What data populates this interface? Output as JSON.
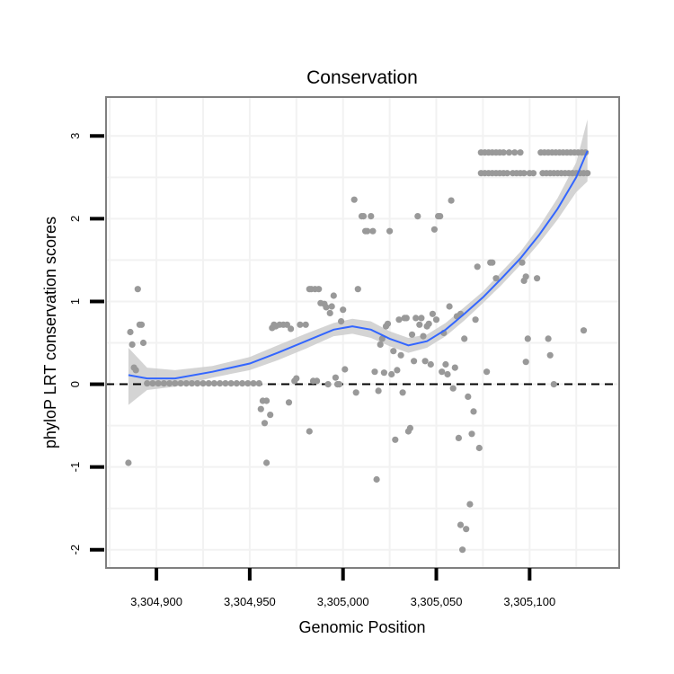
{
  "chart_data": {
    "type": "scatter",
    "title": "Conservation",
    "xlabel": "Genomic Position",
    "ylabel": "phyloP LRT conservation scores",
    "xlim": [
      3304873,
      3305148
    ],
    "ylim": [
      -2.22,
      3.47
    ],
    "x_ticks": [
      3304900,
      3304950,
      3305000,
      3305050,
      3305100
    ],
    "x_tick_labels": [
      "3,304,900",
      "3,304,950",
      "3,305,000",
      "3,305,050",
      "3,305,100"
    ],
    "y_ticks": [
      -2,
      -1,
      0,
      1,
      2,
      3
    ],
    "y_tick_labels": [
      "-2",
      "-1",
      "0",
      "1",
      "2",
      "3"
    ],
    "reference_line": {
      "y": 0,
      "style": "dashed"
    },
    "colors": {
      "points": "#999999",
      "smooth": "#3366ff",
      "ribbon": "#cccccc",
      "panel_border": "#7f7f7f",
      "grid": "#f2f2f2"
    },
    "points": [
      [
        3304885,
        -0.95
      ],
      [
        3304886,
        0.63
      ],
      [
        3304887,
        0.48
      ],
      [
        3304888,
        0.2
      ],
      [
        3304889,
        0.17
      ],
      [
        3304890,
        1.15
      ],
      [
        3304891,
        0.72
      ],
      [
        3304892,
        0.72
      ],
      [
        3304893,
        0.5
      ],
      [
        3304895,
        0.01
      ],
      [
        3304898,
        0.01
      ],
      [
        3304901,
        0.01
      ],
      [
        3304904,
        0.01
      ],
      [
        3304907,
        0.01
      ],
      [
        3304910,
        0.01
      ],
      [
        3304913,
        0.01
      ],
      [
        3304916,
        0.01
      ],
      [
        3304919,
        0.01
      ],
      [
        3304922,
        0.01
      ],
      [
        3304925,
        0.01
      ],
      [
        3304928,
        0.01
      ],
      [
        3304931,
        0.01
      ],
      [
        3304934,
        0.01
      ],
      [
        3304937,
        0.01
      ],
      [
        3304940,
        0.01
      ],
      [
        3304943,
        0.01
      ],
      [
        3304946,
        0.01
      ],
      [
        3304949,
        0.01
      ],
      [
        3304952,
        0.01
      ],
      [
        3304955,
        0.01
      ],
      [
        3304956,
        -0.3
      ],
      [
        3304957,
        -0.2
      ],
      [
        3304958,
        -0.47
      ],
      [
        3304959,
        -0.2
      ],
      [
        3304959,
        -0.95
      ],
      [
        3304961,
        -0.37
      ],
      [
        3304962,
        0.68
      ],
      [
        3304963,
        0.72
      ],
      [
        3304964,
        0.7
      ],
      [
        3304966,
        0.72
      ],
      [
        3304968,
        0.72
      ],
      [
        3304970,
        0.72
      ],
      [
        3304971,
        -0.22
      ],
      [
        3304972,
        0.67
      ],
      [
        3304974,
        0.04
      ],
      [
        3304975,
        0.07
      ],
      [
        3304977,
        0.72
      ],
      [
        3304980,
        0.72
      ],
      [
        3304982,
        -0.57
      ],
      [
        3304982,
        1.15
      ],
      [
        3304983,
        1.15
      ],
      [
        3304985,
        1.15
      ],
      [
        3304987,
        1.15
      ],
      [
        3304984,
        0.04
      ],
      [
        3304986,
        0.04
      ],
      [
        3304988,
        0.98
      ],
      [
        3304990,
        0.97
      ],
      [
        3304991,
        0.93
      ],
      [
        3304992,
        0.0
      ],
      [
        3304993,
        0.86
      ],
      [
        3304994,
        0.94
      ],
      [
        3304995,
        1.07
      ],
      [
        3304996,
        0.08
      ],
      [
        3304997,
        0.0
      ],
      [
        3304998,
        0.0
      ],
      [
        3304999,
        0.76
      ],
      [
        3305000,
        0.9
      ],
      [
        3305001,
        0.18
      ],
      [
        3305006,
        2.23
      ],
      [
        3305007,
        -0.1
      ],
      [
        3305008,
        1.15
      ],
      [
        3305010,
        2.03
      ],
      [
        3305011,
        2.03
      ],
      [
        3305012,
        1.85
      ],
      [
        3305013,
        1.85
      ],
      [
        3305015,
        2.03
      ],
      [
        3305016,
        1.85
      ],
      [
        3305017,
        0.15
      ],
      [
        3305018,
        -1.15
      ],
      [
        3305019,
        -0.08
      ],
      [
        3305020,
        0.48
      ],
      [
        3305021,
        0.55
      ],
      [
        3305022,
        0.14
      ],
      [
        3305023,
        0.7
      ],
      [
        3305024,
        0.73
      ],
      [
        3305025,
        1.85
      ],
      [
        3305026,
        0.12
      ],
      [
        3305027,
        0.4
      ],
      [
        3305028,
        -0.67
      ],
      [
        3305029,
        0.17
      ],
      [
        3305030,
        0.78
      ],
      [
        3305031,
        0.35
      ],
      [
        3305032,
        -0.1
      ],
      [
        3305033,
        0.8
      ],
      [
        3305034,
        0.8
      ],
      [
        3305035,
        -0.57
      ],
      [
        3305036,
        -0.53
      ],
      [
        3305037,
        0.6
      ],
      [
        3305038,
        0.28
      ],
      [
        3305039,
        0.8
      ],
      [
        3305040,
        2.03
      ],
      [
        3305041,
        0.72
      ],
      [
        3305042,
        0.8
      ],
      [
        3305043,
        0.58
      ],
      [
        3305044,
        0.28
      ],
      [
        3305045,
        0.7
      ],
      [
        3305046,
        0.73
      ],
      [
        3305047,
        0.24
      ],
      [
        3305048,
        0.85
      ],
      [
        3305049,
        1.87
      ],
      [
        3305050,
        0.78
      ],
      [
        3305051,
        2.03
      ],
      [
        3305052,
        2.03
      ],
      [
        3305053,
        0.15
      ],
      [
        3305054,
        0.62
      ],
      [
        3305055,
        0.24
      ],
      [
        3305056,
        0.12
      ],
      [
        3305057,
        0.94
      ],
      [
        3305058,
        2.22
      ],
      [
        3305059,
        -0.05
      ],
      [
        3305060,
        0.2
      ],
      [
        3305061,
        0.82
      ],
      [
        3305062,
        -0.65
      ],
      [
        3305063,
        -1.7
      ],
      [
        3305064,
        -2.0
      ],
      [
        3305063,
        0.85
      ],
      [
        3305065,
        0.55
      ],
      [
        3305066,
        -1.75
      ],
      [
        3305067,
        -0.15
      ],
      [
        3305068,
        -1.45
      ],
      [
        3305069,
        -0.6
      ],
      [
        3305070,
        -0.33
      ],
      [
        3305071,
        0.78
      ],
      [
        3305072,
        1.42
      ],
      [
        3305073,
        -0.77
      ],
      [
        3305077,
        0.15
      ],
      [
        3305074,
        2.8
      ],
      [
        3305076,
        2.8
      ],
      [
        3305078,
        2.8
      ],
      [
        3305080,
        2.8
      ],
      [
        3305082,
        2.8
      ],
      [
        3305084,
        2.8
      ],
      [
        3305086,
        2.8
      ],
      [
        3305089,
        2.8
      ],
      [
        3305092,
        2.8
      ],
      [
        3305095,
        2.8
      ],
      [
        3305074,
        2.55
      ],
      [
        3305076,
        2.55
      ],
      [
        3305078,
        2.55
      ],
      [
        3305080,
        2.55
      ],
      [
        3305082,
        2.55
      ],
      [
        3305084,
        2.55
      ],
      [
        3305086,
        2.55
      ],
      [
        3305088,
        2.55
      ],
      [
        3305091,
        2.55
      ],
      [
        3305093,
        2.55
      ],
      [
        3305095,
        2.55
      ],
      [
        3305097,
        2.55
      ],
      [
        3305100,
        2.55
      ],
      [
        3305102,
        2.55
      ],
      [
        3305079,
        1.47
      ],
      [
        3305080,
        1.47
      ],
      [
        3305082,
        1.28
      ],
      [
        3305096,
        1.47
      ],
      [
        3305097,
        1.25
      ],
      [
        3305098,
        1.3
      ],
      [
        3305098,
        0.27
      ],
      [
        3305099,
        0.55
      ],
      [
        3305104,
        1.28
      ],
      [
        3305110,
        0.55
      ],
      [
        3305111,
        0.35
      ],
      [
        3305113,
        0.0
      ],
      [
        3305129,
        0.65
      ],
      [
        3305106,
        2.8
      ],
      [
        3305108,
        2.8
      ],
      [
        3305110,
        2.8
      ],
      [
        3305112,
        2.8
      ],
      [
        3305114,
        2.8
      ],
      [
        3305116,
        2.8
      ],
      [
        3305118,
        2.8
      ],
      [
        3305120,
        2.8
      ],
      [
        3305122,
        2.8
      ],
      [
        3305124,
        2.8
      ],
      [
        3305126,
        2.8
      ],
      [
        3305128,
        2.8
      ],
      [
        3305130,
        2.8
      ],
      [
        3305107,
        2.55
      ],
      [
        3305109,
        2.55
      ],
      [
        3305111,
        2.55
      ],
      [
        3305113,
        2.55
      ],
      [
        3305115,
        2.55
      ],
      [
        3305117,
        2.55
      ],
      [
        3305119,
        2.55
      ],
      [
        3305121,
        2.55
      ],
      [
        3305123,
        2.55
      ],
      [
        3305125,
        2.55
      ],
      [
        3305127,
        2.55
      ],
      [
        3305129,
        2.55
      ],
      [
        3305131,
        2.55
      ]
    ],
    "smooth": [
      [
        3304885,
        0.11
      ],
      [
        3304895,
        0.07
      ],
      [
        3304910,
        0.07
      ],
      [
        3304930,
        0.15
      ],
      [
        3304950,
        0.25
      ],
      [
        3304965,
        0.38
      ],
      [
        3304980,
        0.52
      ],
      [
        3304995,
        0.66
      ],
      [
        3305005,
        0.7
      ],
      [
        3305015,
        0.66
      ],
      [
        3305025,
        0.55
      ],
      [
        3305035,
        0.47
      ],
      [
        3305045,
        0.52
      ],
      [
        3305055,
        0.66
      ],
      [
        3305065,
        0.85
      ],
      [
        3305075,
        1.05
      ],
      [
        3305085,
        1.28
      ],
      [
        3305095,
        1.52
      ],
      [
        3305105,
        1.8
      ],
      [
        3305115,
        2.12
      ],
      [
        3305125,
        2.5
      ],
      [
        3305131,
        2.82
      ]
    ],
    "ribbon_upper": [
      [
        3304885,
        0.44
      ],
      [
        3304895,
        0.2
      ],
      [
        3304910,
        0.17
      ],
      [
        3304930,
        0.22
      ],
      [
        3304950,
        0.33
      ],
      [
        3304965,
        0.47
      ],
      [
        3304980,
        0.61
      ],
      [
        3304995,
        0.74
      ],
      [
        3305005,
        0.79
      ],
      [
        3305015,
        0.76
      ],
      [
        3305025,
        0.64
      ],
      [
        3305035,
        0.56
      ],
      [
        3305045,
        0.6
      ],
      [
        3305055,
        0.74
      ],
      [
        3305065,
        0.93
      ],
      [
        3305075,
        1.12
      ],
      [
        3305085,
        1.36
      ],
      [
        3305095,
        1.6
      ],
      [
        3305105,
        1.9
      ],
      [
        3305115,
        2.25
      ],
      [
        3305125,
        2.68
      ],
      [
        3305131,
        3.2
      ]
    ],
    "ribbon_lower": [
      [
        3304885,
        -0.25
      ],
      [
        3304895,
        -0.07
      ],
      [
        3304910,
        -0.03
      ],
      [
        3304930,
        0.08
      ],
      [
        3304950,
        0.17
      ],
      [
        3304965,
        0.29
      ],
      [
        3304980,
        0.43
      ],
      [
        3304995,
        0.58
      ],
      [
        3305005,
        0.61
      ],
      [
        3305015,
        0.56
      ],
      [
        3305025,
        0.46
      ],
      [
        3305035,
        0.38
      ],
      [
        3305045,
        0.44
      ],
      [
        3305055,
        0.58
      ],
      [
        3305065,
        0.77
      ],
      [
        3305075,
        0.98
      ],
      [
        3305085,
        1.2
      ],
      [
        3305095,
        1.44
      ],
      [
        3305105,
        1.7
      ],
      [
        3305115,
        1.99
      ],
      [
        3305125,
        2.32
      ],
      [
        3305131,
        2.45
      ]
    ]
  }
}
